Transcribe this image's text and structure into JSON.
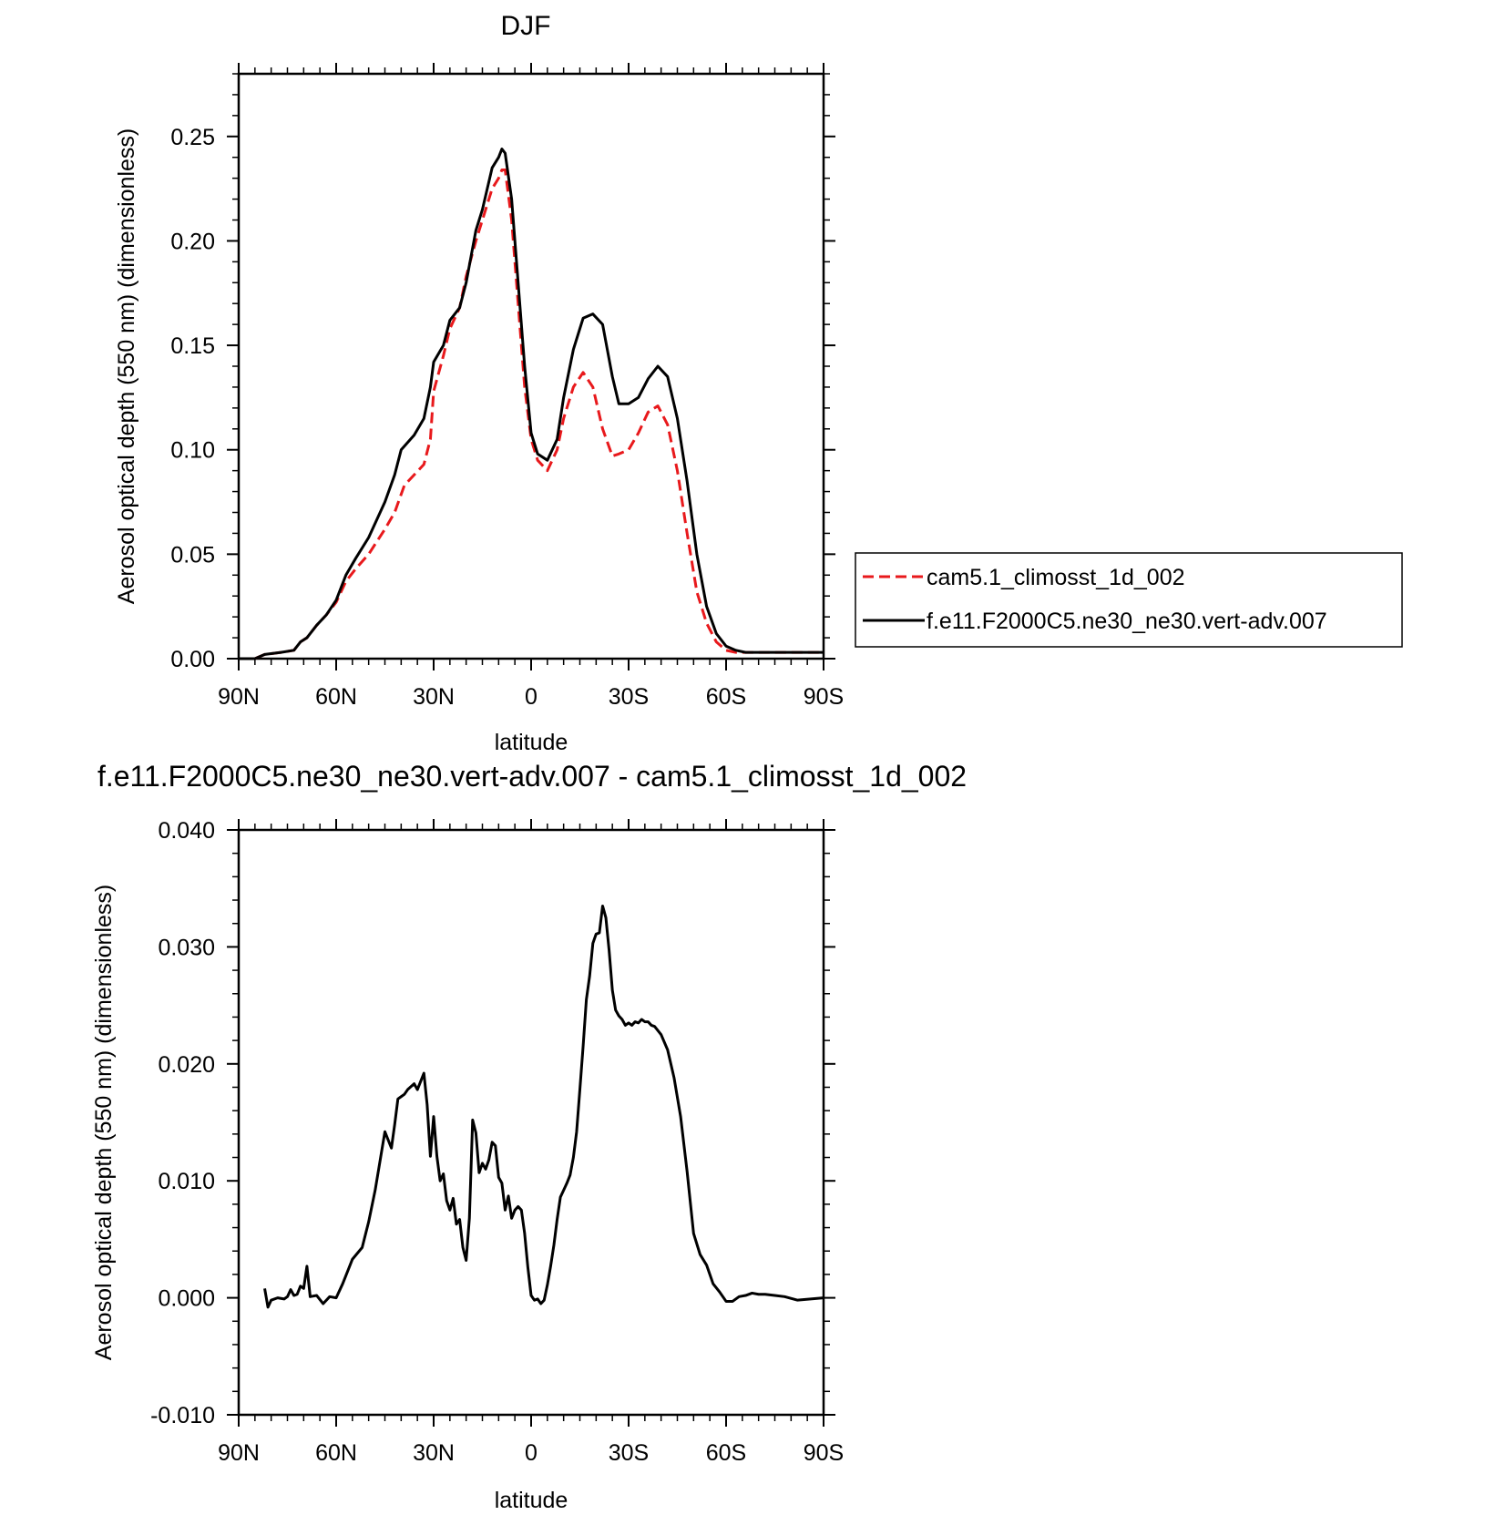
{
  "chart_data": [
    {
      "type": "line",
      "title": "DJF",
      "xlabel": "latitude",
      "ylabel": "Aerosol optical depth (550 nm) (dimensionless)",
      "xlim": [
        90,
        -90
      ],
      "ylim": [
        0,
        0.28
      ],
      "x_ticks": [
        {
          "value": 90,
          "label": "90N"
        },
        {
          "value": 60,
          "label": "60N"
        },
        {
          "value": 30,
          "label": "30N"
        },
        {
          "value": 0,
          "label": "0"
        },
        {
          "value": -30,
          "label": "30S"
        },
        {
          "value": -60,
          "label": "60S"
        },
        {
          "value": -90,
          "label": "90S"
        }
      ],
      "y_ticks": [
        {
          "value": 0,
          "label": "0.00"
        },
        {
          "value": 0.05,
          "label": "0.05"
        },
        {
          "value": 0.1,
          "label": "0.10"
        },
        {
          "value": 0.15,
          "label": "0.15"
        },
        {
          "value": 0.2,
          "label": "0.20"
        },
        {
          "value": 0.25,
          "label": "0.25"
        }
      ],
      "legend": "right, outside plot",
      "series": [
        {
          "name": "cam5.1_climosst_1d_002",
          "color": "#e8191c",
          "dash": "dashed",
          "x": [
            90,
            85,
            82,
            77,
            73,
            71,
            69,
            66,
            63,
            60,
            57,
            54,
            50,
            45,
            42,
            39,
            36,
            33,
            31,
            30,
            27,
            25,
            22,
            20,
            17,
            15,
            12,
            10,
            9,
            8,
            6,
            4,
            2,
            0,
            -2,
            -5,
            -8,
            -10,
            -13,
            -16,
            -19,
            -22,
            -25,
            -27,
            -30,
            -33,
            -36,
            -39,
            -42,
            -45,
            -48,
            -51,
            -54,
            -57,
            -60,
            -63,
            -66,
            -69,
            -72,
            -75,
            -78,
            -81,
            -84,
            -87,
            -90
          ],
          "y": [
            0.0,
            0.0,
            0.002,
            0.003,
            0.004,
            0.008,
            0.01,
            0.016,
            0.021,
            0.027,
            0.037,
            0.043,
            0.05,
            0.062,
            0.07,
            0.083,
            0.088,
            0.093,
            0.105,
            0.128,
            0.145,
            0.158,
            0.168,
            0.183,
            0.2,
            0.21,
            0.225,
            0.23,
            0.234,
            0.234,
            0.21,
            0.17,
            0.13,
            0.105,
            0.095,
            0.09,
            0.1,
            0.115,
            0.13,
            0.137,
            0.13,
            0.11,
            0.097,
            0.098,
            0.1,
            0.108,
            0.118,
            0.121,
            0.112,
            0.09,
            0.06,
            0.032,
            0.017,
            0.008,
            0.004,
            0.003,
            0.003,
            0.003,
            0.003,
            0.003,
            0.003,
            0.003,
            0.003,
            0.003,
            0.003
          ]
        },
        {
          "name": "f.e11.F2000C5.ne30_ne30.vert-adv.007",
          "color": "#000000",
          "dash": "solid",
          "x": [
            90,
            85,
            82,
            77,
            73,
            71,
            69,
            66,
            63,
            60,
            57,
            54,
            50,
            45,
            42,
            40,
            36,
            33,
            31,
            30,
            27,
            25,
            22,
            20,
            17,
            15,
            12,
            10,
            9,
            8,
            6,
            4,
            2,
            0,
            -2,
            -5,
            -8,
            -10,
            -13,
            -16,
            -19,
            -22,
            -25,
            -27,
            -30,
            -33,
            -36,
            -39,
            -42,
            -45,
            -48,
            -51,
            -54,
            -57,
            -60,
            -63,
            -66,
            -69,
            -72,
            -75,
            -78,
            -81,
            -84,
            -87,
            -90
          ],
          "y": [
            0.0,
            0.0,
            0.002,
            0.003,
            0.004,
            0.008,
            0.01,
            0.016,
            0.021,
            0.028,
            0.04,
            0.048,
            0.058,
            0.075,
            0.088,
            0.1,
            0.107,
            0.115,
            0.13,
            0.142,
            0.15,
            0.162,
            0.168,
            0.18,
            0.205,
            0.215,
            0.235,
            0.24,
            0.244,
            0.242,
            0.22,
            0.18,
            0.14,
            0.108,
            0.098,
            0.095,
            0.105,
            0.125,
            0.148,
            0.163,
            0.165,
            0.16,
            0.135,
            0.122,
            0.122,
            0.125,
            0.134,
            0.14,
            0.135,
            0.115,
            0.085,
            0.05,
            0.025,
            0.012,
            0.006,
            0.004,
            0.003,
            0.003,
            0.003,
            0.003,
            0.003,
            0.003,
            0.003,
            0.003,
            0.003
          ]
        }
      ]
    },
    {
      "type": "line",
      "title": "f.e11.F2000C5.ne30_ne30.vert-adv.007 - cam5.1_climosst_1d_002",
      "xlabel": "latitude",
      "ylabel": "Aerosol optical depth (550 nm) (dimensionless)",
      "xlim": [
        90,
        -90
      ],
      "ylim": [
        -0.01,
        0.04
      ],
      "x_ticks": [
        {
          "value": 90,
          "label": "90N"
        },
        {
          "value": 60,
          "label": "60N"
        },
        {
          "value": 30,
          "label": "30N"
        },
        {
          "value": 0,
          "label": "0"
        },
        {
          "value": -30,
          "label": "30S"
        },
        {
          "value": -60,
          "label": "60S"
        },
        {
          "value": -90,
          "label": "90S"
        }
      ],
      "y_ticks": [
        {
          "value": -0.01,
          "label": "-0.010"
        },
        {
          "value": 0.0,
          "label": "0.000"
        },
        {
          "value": 0.01,
          "label": "0.010"
        },
        {
          "value": 0.02,
          "label": "0.020"
        },
        {
          "value": 0.03,
          "label": "0.030"
        },
        {
          "value": 0.04,
          "label": "0.040"
        }
      ],
      "series": [
        {
          "color": "#000000",
          "dash": "solid",
          "x": [
            82,
            81,
            80,
            78,
            76,
            75,
            74,
            73,
            72,
            71,
            70,
            69,
            68,
            66,
            64,
            62,
            60,
            58,
            55,
            52,
            50,
            48,
            45,
            43,
            42,
            41,
            40,
            39,
            38,
            36,
            35,
            34,
            33,
            32,
            31,
            30,
            29,
            28,
            27,
            26,
            25,
            24,
            23,
            22,
            21,
            20,
            19,
            18,
            17,
            16,
            15,
            14,
            13,
            12,
            11,
            10,
            9,
            8,
            7,
            6,
            5,
            4,
            3,
            2,
            1,
            0,
            -1,
            -2,
            -3,
            -4,
            -5,
            -6,
            -7,
            -8,
            -9,
            -10,
            -11,
            -12,
            -13,
            -14,
            -15,
            -16,
            -17,
            -18,
            -19,
            -20,
            -21,
            -22,
            -23,
            -24,
            -25,
            -26,
            -27,
            -28,
            -29,
            -30,
            -31,
            -32,
            -33,
            -34,
            -35,
            -36,
            -37,
            -38,
            -40,
            -42,
            -44,
            -46,
            -48,
            -50,
            -52,
            -54,
            -56,
            -58,
            -60,
            -62,
            -64,
            -66,
            -68,
            -70,
            -72,
            -75,
            -78,
            -82,
            -86,
            -90
          ],
          "y": [
            0.0008,
            -0.0008,
            -0.0002,
            0.0,
            -0.0001,
            0.0001,
            0.0007,
            0.0002,
            0.0003,
            0.001,
            0.0008,
            0.0027,
            0.0001,
            0.0002,
            -0.0005,
            0.0001,
            0.0,
            0.0012,
            0.0033,
            0.0043,
            0.0065,
            0.0092,
            0.0142,
            0.0128,
            0.0148,
            0.017,
            0.0172,
            0.0174,
            0.0178,
            0.0183,
            0.0178,
            0.0185,
            0.0192,
            0.0165,
            0.0121,
            0.0155,
            0.0121,
            0.01,
            0.0106,
            0.0083,
            0.0075,
            0.0085,
            0.0063,
            0.0067,
            0.0043,
            0.0032,
            0.0068,
            0.0152,
            0.0141,
            0.0107,
            0.0115,
            0.011,
            0.0118,
            0.0133,
            0.013,
            0.0103,
            0.0098,
            0.0075,
            0.0087,
            0.0068,
            0.0075,
            0.0078,
            0.0075,
            0.0055,
            0.0026,
            0.0002,
            -0.0002,
            -0.0001,
            -0.0005,
            -0.0002,
            0.0011,
            0.0027,
            0.0045,
            0.0067,
            0.0086,
            0.0092,
            0.0098,
            0.0105,
            0.012,
            0.0142,
            0.0178,
            0.0215,
            0.0255,
            0.0275,
            0.0303,
            0.0311,
            0.0312,
            0.0335,
            0.0325,
            0.0297,
            0.0263,
            0.0246,
            0.0241,
            0.0238,
            0.0233,
            0.0235,
            0.0233,
            0.0236,
            0.0235,
            0.0238,
            0.0236,
            0.0236,
            0.0233,
            0.0232,
            0.0225,
            0.0212,
            0.0188,
            0.0155,
            0.0108,
            0.0055,
            0.0037,
            0.0028,
            0.0012,
            0.0005,
            -0.0003,
            -0.0003,
            0.0001,
            0.0002,
            0.0004,
            0.0003,
            0.0003,
            0.0002,
            0.0001,
            -0.0002,
            -0.0001,
            0.0
          ]
        }
      ]
    }
  ]
}
